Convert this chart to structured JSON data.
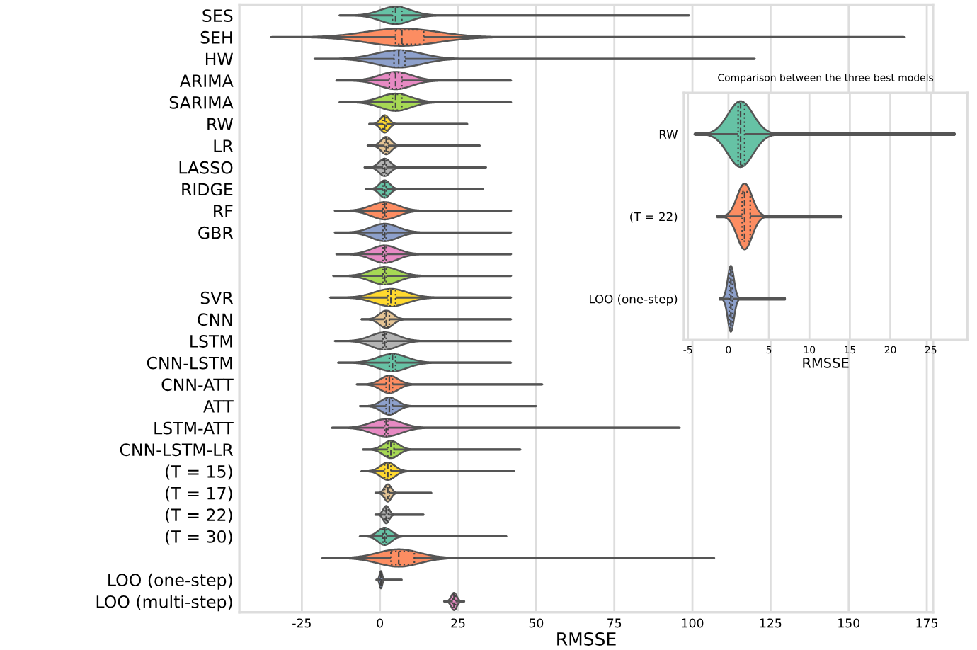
{
  "chart_data": [
    {
      "type": "box",
      "orientation": "horizontal",
      "xlabel": "RMSSE",
      "categories": [
        "SES",
        "SEH",
        "HW",
        "ARIMA",
        "SARIMA",
        "RW",
        "LR",
        "LASSO",
        "RIDGE",
        "RF",
        "GBR",
        null,
        null,
        "SVR",
        "CNN",
        "LSTM",
        "CNN-LSTM",
        "CNN-ATT",
        "ATT",
        "LSTM-ATT",
        "CNN-LSTM-LR",
        "(T = 15)",
        "(T = 17)",
        "(T = 22)",
        "(T = 30)",
        null,
        "LOO (one-step)",
        "LOO (multi-step)"
      ],
      "boxes": [
        {
          "low": -13,
          "q1": 4,
          "median": 5,
          "q3": 7,
          "high": 99
        },
        {
          "low": -35,
          "q1": 5,
          "median": 7,
          "q3": 14,
          "high": 168
        },
        {
          "low": -21,
          "q1": 4.5,
          "median": 6,
          "q3": 8,
          "high": 120
        },
        {
          "low": -14,
          "q1": 3,
          "median": 5,
          "q3": 7,
          "high": 42
        },
        {
          "low": -13,
          "q1": 4,
          "median": 5,
          "q3": 7,
          "high": 42
        },
        {
          "low": -3.5,
          "q1": 1,
          "median": 1.5,
          "q3": 2,
          "high": 28
        },
        {
          "low": -4,
          "q1": 1.5,
          "median": 2,
          "q3": 2.5,
          "high": 32
        },
        {
          "low": -5,
          "q1": 1,
          "median": 1.5,
          "q3": 2,
          "high": 34
        },
        {
          "low": -4.5,
          "q1": 1,
          "median": 1.5,
          "q3": 2,
          "high": 33
        },
        {
          "low": -14.5,
          "q1": 1,
          "median": 1.5,
          "q3": 2,
          "high": 42
        },
        {
          "low": -14.5,
          "q1": 1,
          "median": 1.5,
          "q3": 2,
          "high": 42
        },
        {
          "low": -14,
          "q1": 1,
          "median": 1.5,
          "q3": 2,
          "high": 42
        },
        {
          "low": -15,
          "q1": 1,
          "median": 1.5,
          "q3": 2,
          "high": 42
        },
        {
          "low": -16,
          "q1": 2.5,
          "median": 3.5,
          "q3": 5,
          "high": 42
        },
        {
          "low": -6,
          "q1": 1.5,
          "median": 2,
          "q3": 3,
          "high": 42
        },
        {
          "low": -14.5,
          "q1": 1,
          "median": 1.5,
          "q3": 2,
          "high": 42
        },
        {
          "low": -13.5,
          "q1": 3,
          "median": 4,
          "q3": 5,
          "high": 42
        },
        {
          "low": -7.5,
          "q1": 2,
          "median": 3,
          "q3": 4,
          "high": 52
        },
        {
          "low": -6.5,
          "q1": 2,
          "median": 3,
          "q3": 4,
          "high": 50
        },
        {
          "low": -15.5,
          "q1": 1.5,
          "median": 2,
          "q3": 2.5,
          "high": 96
        },
        {
          "low": -5.5,
          "q1": 2.5,
          "median": 3.5,
          "q3": 4.5,
          "high": 45
        },
        {
          "low": -6,
          "q1": 1.5,
          "median": 2.5,
          "q3": 3.5,
          "high": 43
        },
        {
          "low": -1.5,
          "q1": 1.5,
          "median": 2.5,
          "q3": 3,
          "high": 16.5
        },
        {
          "low": -1.5,
          "q1": 1.7,
          "median": 2,
          "q3": 2.7,
          "high": 14
        },
        {
          "low": -6.5,
          "q1": 1,
          "median": 1.5,
          "q3": 2,
          "high": 40.5
        },
        {
          "low": -18.5,
          "q1": 3.5,
          "median": 6,
          "q3": 11,
          "high": 107
        },
        {
          "low": -1.2,
          "q1": 0.1,
          "median": 0.3,
          "q3": 0.5,
          "high": 7
        },
        {
          "low": 20.5,
          "q1": 23.3,
          "median": 23.7,
          "q3": 24.2,
          "high": 27
        }
      ],
      "colors": [
        "#66c2a5",
        "#fc8d62",
        "#8da0cb",
        "#e78ac3",
        "#a6d854",
        "#ffd92f",
        "#e5c494",
        "#b3b3b3",
        "#66c2a5",
        "#fc8d62",
        "#8da0cb",
        "#e78ac3",
        "#a6d854",
        "#ffd92f",
        "#e5c494",
        "#b3b3b3",
        "#66c2a5",
        "#fc8d62",
        "#8da0cb",
        "#e78ac3",
        "#a6d854",
        "#ffd92f",
        "#e5c494",
        "#b3b3b3",
        "#66c2a5",
        "#fc8d62",
        "#8da0cb",
        "#e78ac3"
      ],
      "xlim": [
        -45,
        177
      ],
      "xticks": [
        -25,
        0,
        25,
        50,
        75,
        100,
        125,
        150,
        175
      ],
      "grid": "x"
    },
    {
      "type": "box",
      "orientation": "horizontal",
      "title": "Comparison between the three best models",
      "xlabel": "RMSSE",
      "categories": [
        "RW",
        "(T = 22)",
        "LOO (one-step)"
      ],
      "boxes": [
        {
          "low": -4.2,
          "q1": 1.2,
          "median": 1.5,
          "q3": 2,
          "high": 28
        },
        {
          "low": -1.4,
          "q1": 1.7,
          "median": 2,
          "q3": 2.7,
          "high": 14
        },
        {
          "low": -1.1,
          "q1": 0.1,
          "median": 0.3,
          "q3": 0.5,
          "high": 7
        }
      ],
      "colors": [
        "#66c2a5",
        "#fc8d62",
        "#8da0cb"
      ],
      "xlim": [
        -5.5,
        29.5
      ],
      "xticks": [
        -5,
        0,
        5,
        10,
        15,
        20,
        25
      ],
      "grid": "x"
    }
  ]
}
